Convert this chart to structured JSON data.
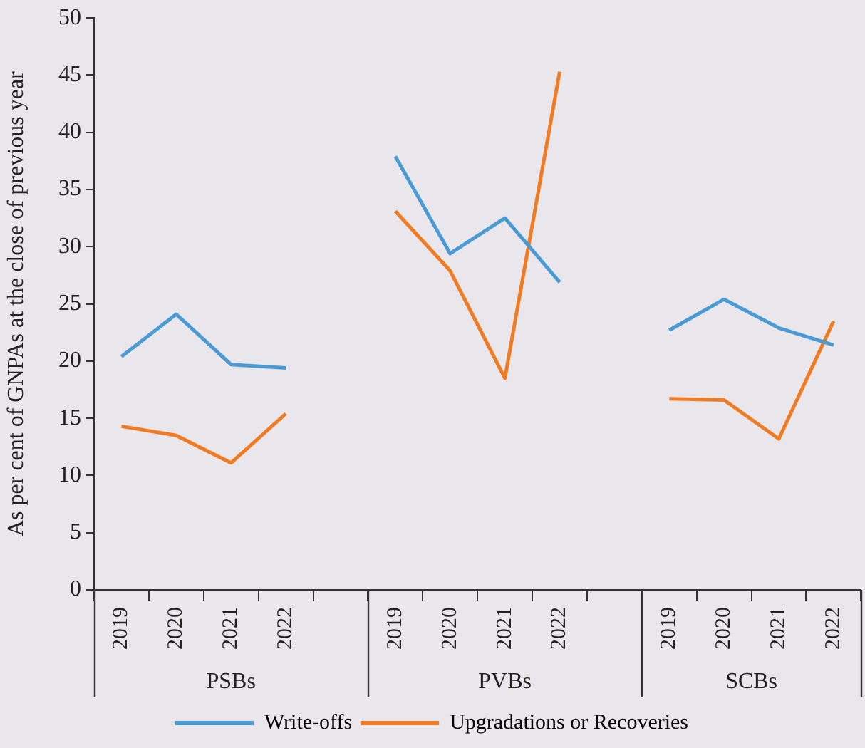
{
  "chart_data": {
    "type": "line",
    "ylabel": "As per cent of GNPAs at the close of previous year",
    "categories": [
      "2019",
      "2020",
      "2021",
      "2022",
      null,
      "2019",
      "2020",
      "2021",
      "2022",
      null,
      "2019",
      "2020",
      "2021",
      "2022"
    ],
    "series": [
      {
        "name": "Write-offs",
        "color": "#4a9bd4",
        "values": [
          20.4,
          24.1,
          19.7,
          19.4,
          null,
          37.9,
          29.4,
          32.5,
          26.9,
          null,
          22.7,
          25.4,
          22.9,
          21.4
        ]
      },
      {
        "name": "Upgradations or Recoveries",
        "color": "#f07b22",
        "values": [
          14.3,
          13.5,
          11.1,
          15.4,
          null,
          33.1,
          27.9,
          18.5,
          45.3,
          null,
          16.7,
          16.6,
          13.2,
          23.5
        ]
      }
    ],
    "annotations": [
      "PSBs",
      "PVBs",
      "SCBs"
    ],
    "ylim": [
      0,
      50
    ],
    "yticks": [
      0,
      5,
      10,
      15,
      20,
      25,
      30,
      35,
      40,
      45,
      50
    ],
    "grid": false,
    "legend": "bottom",
    "marker": "none",
    "line_style": "solid"
  }
}
